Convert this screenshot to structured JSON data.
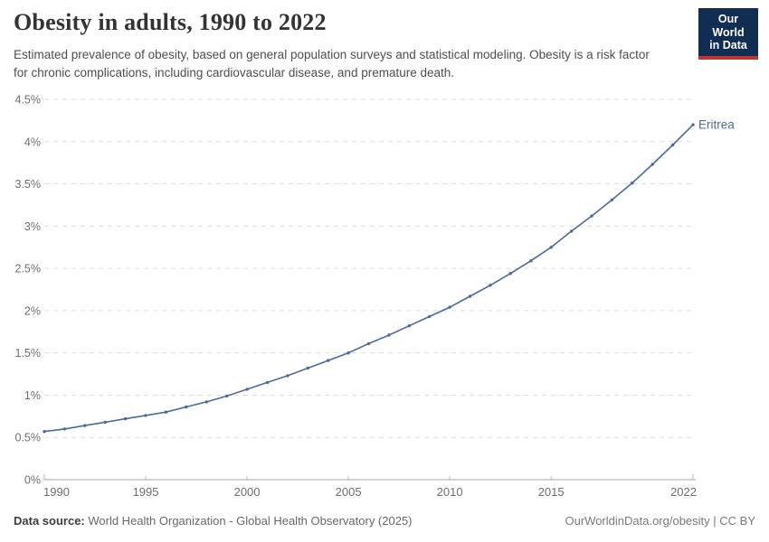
{
  "header": {
    "title": "Obesity in adults, 1990 to 2022",
    "subtitle": "Estimated prevalence of obesity, based on general population surveys and statistical modeling. Obesity is a risk factor for chronic complications, including cardiovascular disease, and premature death.",
    "logo": {
      "line1": "Our World",
      "line2": "in Data"
    }
  },
  "chart_data": {
    "type": "line",
    "title": "Obesity in adults, 1990 to 2022",
    "xlabel": "",
    "ylabel": "",
    "xlim": [
      1990,
      2022
    ],
    "ylim": [
      0,
      4.5
    ],
    "grid": "horizontal-dashed",
    "legend": "end-of-line-label",
    "x": [
      1990,
      1991,
      1992,
      1993,
      1994,
      1995,
      1996,
      1997,
      1998,
      1999,
      2000,
      2001,
      2002,
      2003,
      2004,
      2005,
      2006,
      2007,
      2008,
      2009,
      2010,
      2011,
      2012,
      2013,
      2014,
      2015,
      2016,
      2017,
      2018,
      2019,
      2020,
      2021,
      2022
    ],
    "series": [
      {
        "name": "Eritrea",
        "color": "#4c6a9c",
        "values": [
          0.57,
          0.6,
          0.64,
          0.68,
          0.72,
          0.76,
          0.8,
          0.86,
          0.92,
          0.99,
          1.07,
          1.15,
          1.23,
          1.32,
          1.41,
          1.5,
          1.61,
          1.71,
          1.82,
          1.93,
          2.04,
          2.17,
          2.3,
          2.44,
          2.59,
          2.75,
          2.94,
          3.12,
          3.31,
          3.51,
          3.73,
          3.96,
          4.2
        ]
      }
    ],
    "x_ticks": [
      {
        "value": 1990,
        "label": "1990"
      },
      {
        "value": 1995,
        "label": "1995"
      },
      {
        "value": 2000,
        "label": "2000"
      },
      {
        "value": 2005,
        "label": "2005"
      },
      {
        "value": 2010,
        "label": "2010"
      },
      {
        "value": 2015,
        "label": "2015"
      },
      {
        "value": 2022,
        "label": "2022"
      }
    ],
    "y_ticks": [
      {
        "value": 0,
        "label": "0%"
      },
      {
        "value": 0.5,
        "label": "0.5%"
      },
      {
        "value": 1,
        "label": "1%"
      },
      {
        "value": 1.5,
        "label": "1.5%"
      },
      {
        "value": 2,
        "label": "2%"
      },
      {
        "value": 2.5,
        "label": "2.5%"
      },
      {
        "value": 3,
        "label": "3%"
      },
      {
        "value": 3.5,
        "label": "3.5%"
      },
      {
        "value": 4,
        "label": "4%"
      },
      {
        "value": 4.5,
        "label": "4.5%"
      }
    ]
  },
  "footer": {
    "source_label": "Data source:",
    "source_text": " World Health Organization - Global Health Observatory (2025)",
    "link_text": "OurWorldinData.org/obesity | CC BY"
  },
  "colors": {
    "line": "#4c6a9c",
    "grid": "#dcdcdc",
    "axis": "#a5a5a5",
    "tick": "#b5b5b5",
    "muted_text": "#6e6e6e",
    "logo_bg": "#122d52",
    "logo_stripe": "#c0362c"
  }
}
